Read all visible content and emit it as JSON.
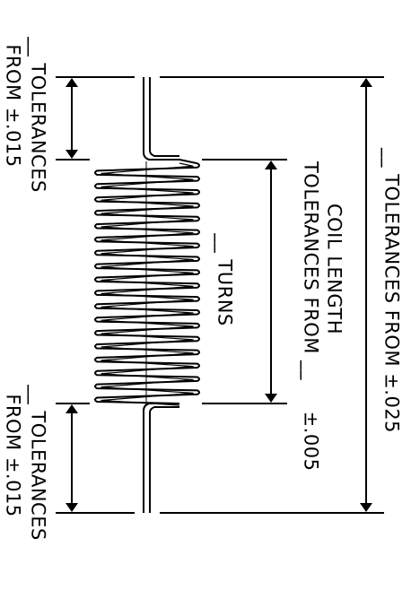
{
  "dimensions": {
    "top_end": {
      "line1": "__ TOLERANCES",
      "line2": "FROM ±.015"
    },
    "bottom_end": {
      "line1": "__ TOLERANCES",
      "line2": "FROM ±.015"
    },
    "coil_length": {
      "line1": "COIL LENGTH",
      "line2": "TOLERANCES FROM __",
      "line3": "±.005"
    },
    "turns": {
      "label": "__ TURNS"
    },
    "overall": {
      "label": "__ TOLERANCES FROM ±.025"
    }
  },
  "colors": {
    "line": "#000000",
    "background": "#ffffff"
  }
}
